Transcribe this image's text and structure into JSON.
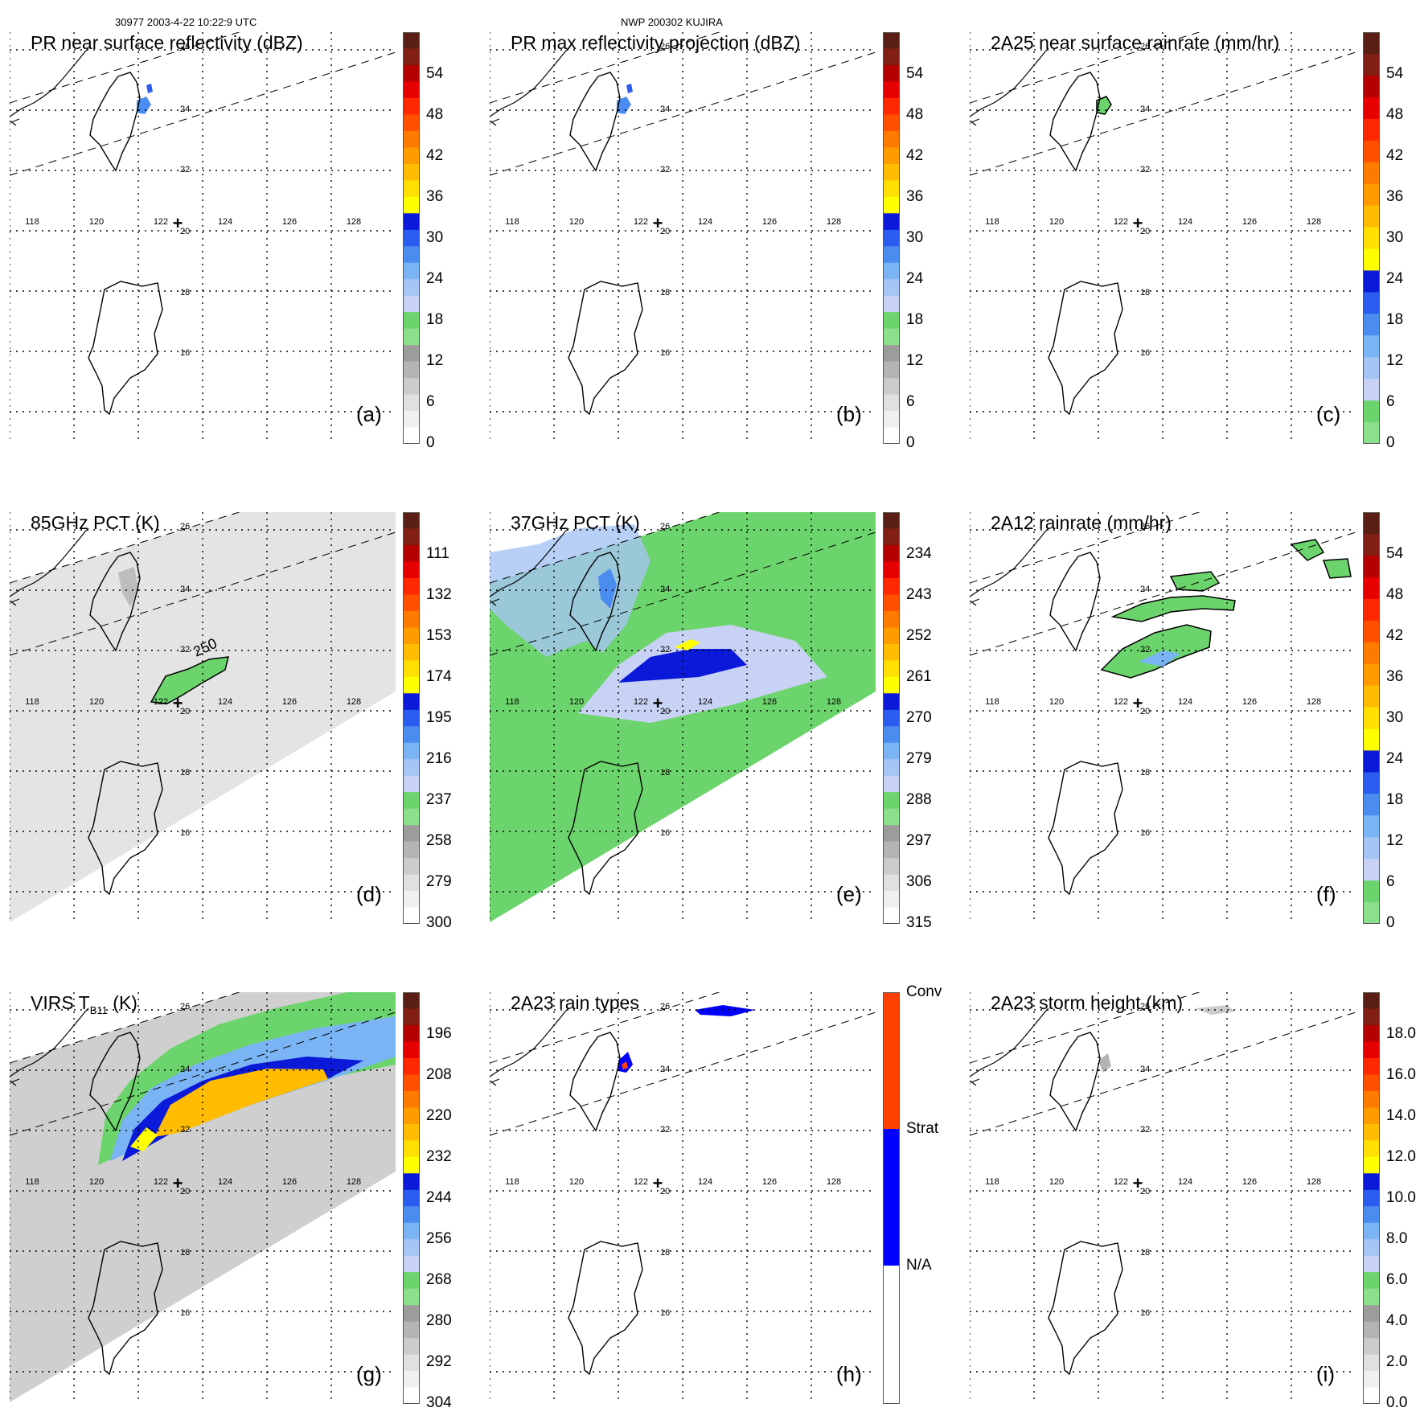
{
  "header": {
    "left": "30977 2003-4-22 10:22:9 UTC",
    "center": "NWP 200302 KUJIRA"
  },
  "map": {
    "lon_labels": [
      "118",
      "120",
      "122",
      "124",
      "126",
      "128"
    ],
    "lat_labels": [
      "26",
      "24",
      "22",
      "20",
      "18",
      "16"
    ],
    "center_marker": "+"
  },
  "panels": [
    {
      "id": "a",
      "title": "PR near surface reflectivity (dBZ)",
      "label": "(a)",
      "ticks": [
        "54",
        "48",
        "42",
        "36",
        "30",
        "24",
        "18",
        "12",
        "6",
        "0"
      ],
      "scale": "dbz",
      "field": "pr_sparse"
    },
    {
      "id": "b",
      "title": "PR max reflectivity projection (dBZ)",
      "label": "(b)",
      "ticks": [
        "54",
        "48",
        "42",
        "36",
        "30",
        "24",
        "18",
        "12",
        "6",
        "0"
      ],
      "scale": "dbz",
      "field": "pr_sparse"
    },
    {
      "id": "c",
      "title": "2A25 near surface rainrate (mm/hr)",
      "label": "(c)",
      "ticks": [
        "54",
        "48",
        "42",
        "36",
        "30",
        "24",
        "18",
        "12",
        "6",
        "0"
      ],
      "scale": "rain",
      "field": "rain_sparse"
    },
    {
      "id": "d",
      "title": "85GHz PCT (K)",
      "label": "(d)",
      "ticks": [
        "111",
        "132",
        "153",
        "174",
        "195",
        "216",
        "237",
        "258",
        "279",
        "300"
      ],
      "scale": "dbz",
      "field": "pct85"
    },
    {
      "id": "e",
      "title": "37GHz PCT (K)",
      "label": "(e)",
      "ticks": [
        "234",
        "243",
        "252",
        "261",
        "270",
        "279",
        "288",
        "297",
        "306",
        "315"
      ],
      "scale": "dbz",
      "field": "pct37"
    },
    {
      "id": "f",
      "title": "2A12 rainrate (mm/hr)",
      "label": "(f)",
      "ticks": [
        "54",
        "48",
        "42",
        "36",
        "30",
        "24",
        "18",
        "12",
        "6",
        "0"
      ],
      "scale": "rain",
      "field": "rain2a12"
    },
    {
      "id": "g",
      "title_main": "VIRS T",
      "title_sub": "B11",
      "title_unit": " (K)",
      "label": "(g)",
      "ticks": [
        "196",
        "208",
        "220",
        "232",
        "244",
        "256",
        "268",
        "280",
        "292",
        "304"
      ],
      "scale": "dbz",
      "field": "virs"
    },
    {
      "id": "h",
      "title": "2A23 rain types",
      "label": "(h)",
      "ticks": [
        "Conv",
        "Strat",
        "N/A"
      ],
      "scale": "raintype",
      "field": "types"
    },
    {
      "id": "i",
      "title": "2A23 storm height (km)",
      "label": "(i)",
      "ticks": [
        "18.0",
        "16.0",
        "14.0",
        "12.0",
        "10.0",
        "8.0",
        "6.0",
        "4.0",
        "2.0",
        "0.0"
      ],
      "scale": "dbz",
      "field": "height"
    }
  ],
  "colors": {
    "dbz": [
      "#ffffff",
      "#f0f0f0",
      "#e0e0e0",
      "#cccccc",
      "#b4b4b4",
      "#9c9c9c",
      "#8ce08c",
      "#6cd46c",
      "#c8d2f4",
      "#a6c4f4",
      "#7ab4f4",
      "#4a8cf0",
      "#2a5cf0",
      "#0a1ad8",
      "#ffff00",
      "#ffe000",
      "#ffbc00",
      "#ff9a00",
      "#ff7a00",
      "#ff5000",
      "#ff2800",
      "#e60000",
      "#b40000",
      "#821e14",
      "#5a1e14"
    ],
    "rain": [
      "#8ce08c",
      "#6cd46c",
      "#c8d2f4",
      "#a6c4f4",
      "#7ab4f4",
      "#4a8cf0",
      "#2a5cf0",
      "#0a1ad8",
      "#ffff00",
      "#ffe000",
      "#ffbc00",
      "#ff9a00",
      "#ff7a00",
      "#ff5000",
      "#ff2800",
      "#e60000",
      "#b40000",
      "#821e14",
      "#5a1e14"
    ],
    "raintype": [
      "#ffffff",
      "#0000ff",
      "#ff4000"
    ]
  }
}
